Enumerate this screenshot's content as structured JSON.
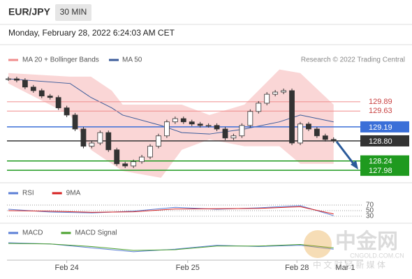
{
  "header": {
    "symbol": "EUR/JPY",
    "timeframe": "30 MIN",
    "timestamp": "Monday, February 28, 2022 6:24:03 AM CET"
  },
  "chart_data": {
    "type": "candlestick",
    "legend": [
      "MA 20 + Bollinger Bands",
      "MA 50"
    ],
    "credit": "Research © 2022 Trading Central",
    "xlim": [
      0,
      41.7
    ],
    "xticks": [
      {
        "value": 7,
        "label": "Feb 24"
      },
      {
        "value": 21.5,
        "label": "Feb 25"
      },
      {
        "value": 34.6,
        "label": "Feb 28"
      },
      {
        "value": 40.4,
        "label": "Mar 1"
      }
    ],
    "ylim": [
      127.71,
      130.88
    ],
    "close": {
      "color": "#333333",
      "values": [
        130.53,
        130.49,
        130.3,
        130.2,
        130.05,
        130.01,
        129.72,
        129.52,
        129.13,
        128.65,
        128.74,
        129.03,
        128.55,
        128.16,
        128.1,
        128.22,
        128.35,
        128.65,
        128.94,
        129.33,
        129.42,
        129.33,
        129.27,
        129.23,
        129.23,
        129.13,
        128.88,
        128.94,
        129.23,
        129.62,
        129.85,
        130.1,
        130.16,
        130.2,
        128.74,
        129.27,
        129.13,
        128.94,
        128.84,
        128.8
      ]
    },
    "bands": {
      "color": "#f4a3a3",
      "x": [
        0,
        7.4,
        9.9,
        12.4,
        13.7,
        18.3,
        20.8,
        24.1,
        28.3,
        32.5,
        35,
        39
      ],
      "upper": [
        130.69,
        130.59,
        130.59,
        130.2,
        129.81,
        129.81,
        129.81,
        129.52,
        129.81,
        130.79,
        130.69,
        129.81
      ],
      "lower": [
        130.4,
        129.52,
        128.55,
        128.16,
        127.96,
        127.77,
        128.55,
        128.84,
        128.65,
        128.65,
        128.16,
        128.16
      ]
    },
    "ma50": {
      "color": "#3b5b9a",
      "x": [
        0,
        7.4,
        9.9,
        12.4,
        13.7,
        18.3,
        20.8,
        24.1,
        28.3,
        32.5,
        35,
        39
      ],
      "values": [
        130.53,
        130.4,
        130.01,
        129.72,
        129.52,
        129.23,
        129.03,
        128.99,
        129.13,
        129.33,
        129.52,
        129.33
      ]
    },
    "levels": [
      {
        "value": 129.89,
        "color": "#f08c8c",
        "style": "text"
      },
      {
        "value": 129.63,
        "color": "#f08c8c",
        "style": "text"
      },
      {
        "value": 129.19,
        "color": "#3a6fd8",
        "style": "box"
      },
      {
        "value": {
          "value": 128.8,
          "label": "128.80"
        },
        "color": "#333333",
        "style": "box"
      },
      {
        "value": 128.24,
        "color": "#1f9a1f",
        "style": "box"
      },
      {
        "value": 127.98,
        "color": "#1f9a1f",
        "style": "box"
      }
    ],
    "rsi": {
      "ylim": [
        10,
        92.5
      ],
      "yticks": [
        70,
        50,
        30
      ],
      "x": [
        0,
        5,
        10,
        15,
        20,
        25,
        30,
        35,
        39
      ],
      "series": [
        {
          "name": "RSI",
          "color": "#5b7fd6",
          "values": [
            55,
            45,
            42,
            48,
            62,
            55,
            60,
            68,
            32
          ]
        },
        {
          "name": "9MA",
          "color": "#d62020",
          "values": [
            50,
            48,
            44,
            46,
            56,
            57,
            58,
            64,
            38
          ]
        }
      ]
    },
    "macd": {
      "ylim": [
        -0.5,
        0.5
      ],
      "x": [
        0,
        5,
        10,
        15,
        20,
        25,
        30,
        35,
        39
      ],
      "series": [
        {
          "name": "MACD",
          "color": "#5b7fd6",
          "values": [
            0.15,
            0.1,
            -0.05,
            -0.2,
            -0.1,
            0.05,
            0,
            0.05,
            -0.1
          ]
        },
        {
          "name": "MACD Signal",
          "color": "#4aa02c",
          "values": [
            0.12,
            0.1,
            0,
            -0.15,
            -0.12,
            0.02,
            0.02,
            0.08,
            -0.05
          ]
        }
      ]
    }
  },
  "watermark": {
    "logo": "中金网",
    "tagline": "中 文 财 经 新 媒 体",
    "site": "CNGOLD.COM.CN"
  }
}
